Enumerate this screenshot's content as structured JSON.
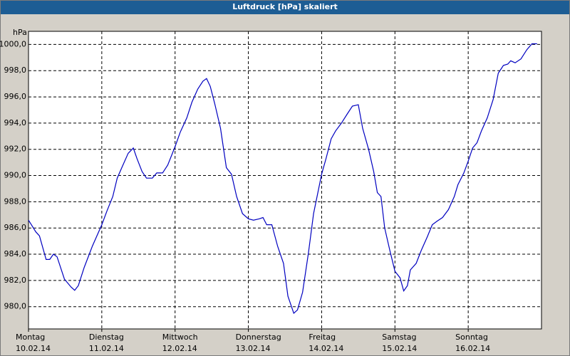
{
  "chart_data": {
    "type": "line",
    "title": "Luftdruck [hPa] skaliert",
    "y_label": "hPa",
    "color": "#0000c0",
    "grid": true,
    "xlim": [
      0,
      7
    ],
    "xticks": [
      {
        "value": 0,
        "label": "Montag",
        "date": "10.02.14"
      },
      {
        "value": 1,
        "label": "Dienstag",
        "date": "11.02.14"
      },
      {
        "value": 2,
        "label": "Mittwoch",
        "date": "12.02.14"
      },
      {
        "value": 3,
        "label": "Donnerstag",
        "date": "13.02.14"
      },
      {
        "value": 4,
        "label": "Freitag",
        "date": "14.02.14"
      },
      {
        "value": 5,
        "label": "Samstag",
        "date": "15.02.14"
      },
      {
        "value": 6,
        "label": "Sonntag",
        "date": "16.02.14"
      }
    ],
    "ylim": [
      978.3,
      1001.0
    ],
    "yticks": [
      {
        "value": 980,
        "label": "980,0"
      },
      {
        "value": 982,
        "label": "982,0"
      },
      {
        "value": 984,
        "label": "984,0"
      },
      {
        "value": 986,
        "label": "986,0"
      },
      {
        "value": 988,
        "label": "988,0"
      },
      {
        "value": 990,
        "label": "990,0"
      },
      {
        "value": 992,
        "label": "992,0"
      },
      {
        "value": 994,
        "label": "994,0"
      },
      {
        "value": 996,
        "label": "996,0"
      },
      {
        "value": 998,
        "label": "998,0"
      },
      {
        "value": 1000,
        "label": "1000,0"
      }
    ],
    "x": [
      0,
      0.1,
      0.15,
      0.24,
      0.29,
      0.34,
      0.39,
      0.49,
      0.58,
      0.63,
      0.68,
      0.76,
      0.87,
      1.0,
      1.07,
      1.15,
      1.21,
      1.28,
      1.36,
      1.43,
      1.48,
      1.55,
      1.61,
      1.69,
      1.75,
      1.83,
      1.9,
      2.0,
      2.07,
      2.16,
      2.23,
      2.31,
      2.38,
      2.43,
      2.48,
      2.54,
      2.62,
      2.7,
      2.77,
      2.84,
      2.92,
      3.0,
      3.07,
      3.15,
      3.2,
      3.25,
      3.32,
      3.4,
      3.48,
      3.54,
      3.62,
      3.67,
      3.74,
      3.82,
      3.89,
      4.0,
      4.06,
      4.13,
      4.19,
      4.27,
      4.35,
      4.42,
      4.5,
      4.56,
      4.64,
      4.71,
      4.76,
      4.81,
      4.86,
      4.93,
      5.0,
      5.07,
      5.12,
      5.17,
      5.21,
      5.29,
      5.36,
      5.44,
      5.51,
      5.57,
      5.65,
      5.73,
      5.81,
      5.86,
      5.94,
      6.0,
      6.06,
      6.12,
      6.18,
      6.26,
      6.34,
      6.41,
      6.48,
      6.54,
      6.58,
      6.64,
      6.72,
      6.8,
      6.87,
      6.94
    ],
    "values": [
      986.6,
      985.7,
      985.4,
      983.6,
      983.6,
      984.0,
      983.8,
      982.1,
      981.5,
      981.25,
      981.6,
      983.0,
      984.6,
      986.25,
      987.3,
      988.4,
      989.8,
      990.7,
      991.7,
      992.1,
      991.3,
      990.3,
      989.8,
      989.8,
      990.2,
      990.2,
      990.8,
      992.2,
      993.3,
      994.4,
      995.6,
      996.6,
      997.2,
      997.4,
      996.8,
      995.5,
      993.6,
      990.6,
      990.1,
      988.4,
      987.1,
      986.7,
      986.6,
      986.7,
      986.8,
      986.25,
      986.25,
      984.6,
      983.3,
      980.8,
      979.5,
      979.75,
      981.1,
      984.1,
      987.1,
      990.1,
      991.3,
      992.8,
      993.4,
      994.0,
      994.7,
      995.3,
      995.4,
      993.6,
      992.0,
      990.3,
      988.7,
      988.4,
      986.0,
      984.3,
      982.7,
      982.2,
      981.2,
      981.6,
      982.8,
      983.3,
      984.3,
      985.3,
      986.25,
      986.5,
      986.8,
      987.4,
      988.4,
      989.3,
      990.2,
      991.1,
      992.1,
      992.5,
      993.4,
      994.4,
      995.8,
      997.8,
      998.4,
      998.5,
      998.75,
      998.6,
      998.9,
      999.6,
      1000.05,
      1000.05
    ]
  }
}
